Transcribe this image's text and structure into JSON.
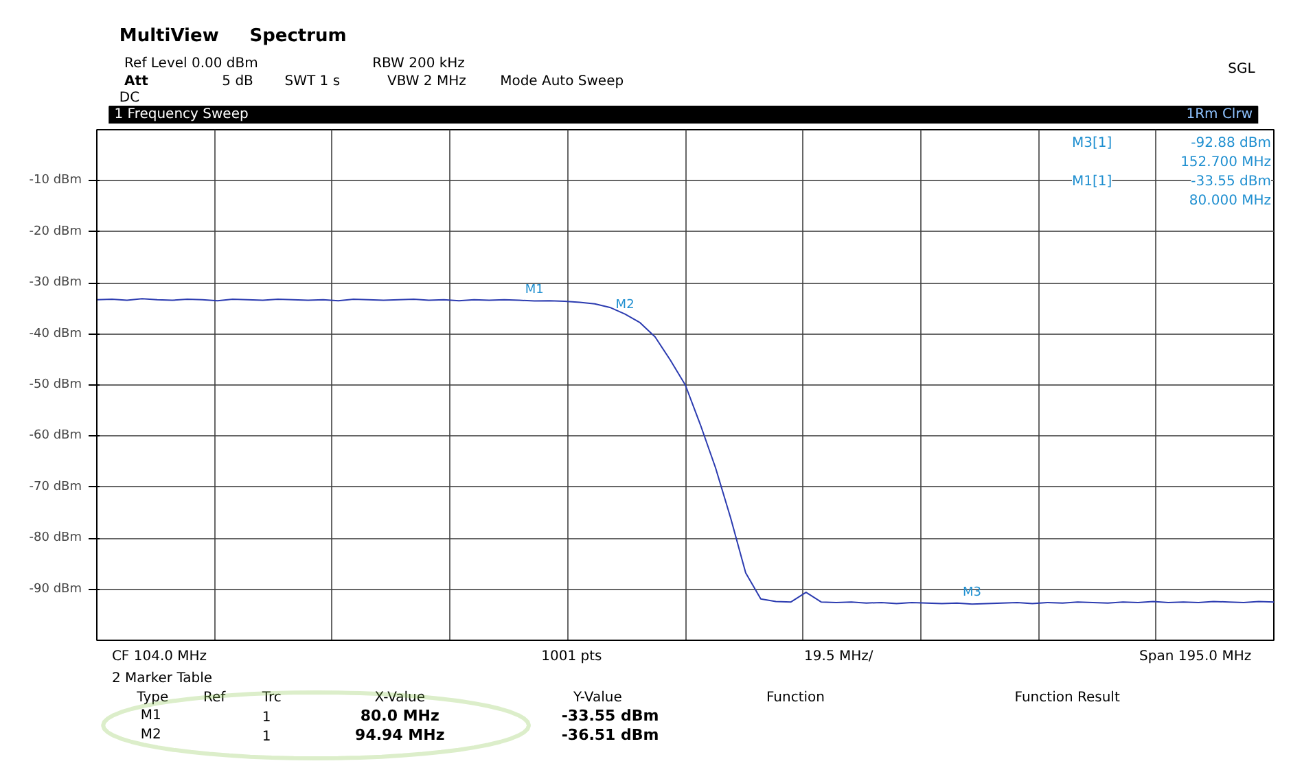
{
  "chart_data": {
    "type": "line",
    "title": "1 Frequency Sweep",
    "categories": [
      null,
      null,
      null,
      null,
      null,
      null,
      null,
      null,
      null,
      null,
      null,
      null,
      null,
      null,
      null,
      null,
      null,
      null,
      null,
      null,
      null,
      null,
      null,
      null,
      null,
      null,
      null,
      null,
      null,
      null,
      null,
      null,
      null,
      null,
      null,
      null,
      null,
      null,
      null,
      null,
      null,
      null,
      null,
      null,
      null,
      null,
      null,
      null,
      null,
      null,
      null,
      null,
      null,
      null,
      null,
      null,
      null,
      null,
      null,
      null,
      null,
      null,
      null,
      null,
      null,
      null,
      null,
      null,
      null,
      null,
      null,
      null,
      null,
      null,
      null,
      null,
      null,
      null,
      null
    ],
    "ylim": [
      -100,
      0
    ],
    "yticks": [
      {
        "value": -10,
        "label": "-10 dBm"
      },
      {
        "value": -20,
        "label": "-20 dBm"
      },
      {
        "value": -30,
        "label": "-30 dBm"
      },
      {
        "value": -40,
        "label": "-40 dBm"
      },
      {
        "value": -50,
        "label": "-50 dBm"
      },
      {
        "value": -60,
        "label": "-60 dBm"
      },
      {
        "value": -70,
        "label": "-70 dBm"
      },
      {
        "value": -80,
        "label": "-80 dBm"
      },
      {
        "value": -90,
        "label": "-90 dBm"
      }
    ],
    "grid": true,
    "line_style": "solid",
    "series": [
      {
        "color": "#2b3bb0",
        "values": [
          -33.3,
          -33.2,
          -33.4,
          -33.1,
          -33.3,
          -33.4,
          -33.2,
          -33.3,
          -33.5,
          -33.2,
          -33.3,
          -33.4,
          -33.2,
          -33.3,
          -33.4,
          -33.3,
          -33.5,
          -33.2,
          -33.3,
          -33.4,
          -33.3,
          -33.2,
          -33.4,
          -33.3,
          -33.5,
          -33.3,
          -33.4,
          -33.3,
          -33.4,
          -33.55,
          -33.5,
          -33.6,
          -33.8,
          -34.1,
          -34.8,
          -36.1,
          -37.8,
          -40.6,
          -45.1,
          -50.0,
          -57.8,
          -66.2,
          -76.0,
          -86.8,
          -91.9,
          -92.4,
          -92.5,
          -90.6,
          -92.5,
          -92.6,
          -92.5,
          -92.7,
          -92.6,
          -92.8,
          -92.6,
          -92.7,
          -92.8,
          -92.7,
          -92.9,
          -92.8,
          -92.7,
          -92.6,
          -92.8,
          -92.6,
          -92.7,
          -92.5,
          -92.6,
          -92.7,
          -92.5,
          -92.6,
          -92.4,
          -92.6,
          -92.5,
          -92.6,
          -92.4,
          -92.5,
          -92.6,
          -92.4,
          -92.5
        ]
      }
    ],
    "annotations": [
      {
        "text": "M1",
        "y": -33.55
      },
      {
        "text": "M2",
        "y": -36.51
      },
      {
        "text": "M3",
        "y": -92.88
      },
      "MultiView",
      "Spectrum",
      "SGL",
      "Ref Level 0.00 dBm",
      "Att",
      "5 dB",
      "SWT 1 s",
      "RBW 200 kHz",
      "VBW 2 MHz",
      "Mode Auto Sweep",
      "DC",
      "1Rm Clrw",
      "M3[1]",
      "-92.88 dBm",
      "152.700 MHz",
      "M1[1]",
      "-33.55 dBm",
      "80.000 MHz",
      "CF 104.0 MHz",
      "1001 pts",
      "19.5 MHz/",
      "Span 195.0 MHz",
      "2 Marker Table",
      "Type",
      "Ref",
      "Trc",
      "X-Value",
      "Y-Value",
      "Function",
      "Function Result",
      "M1",
      "1",
      "80.0 MHz",
      "-33.55 dBm",
      "M2",
      "1",
      "94.94 MHz",
      "-36.51 dBm"
    ]
  }
}
